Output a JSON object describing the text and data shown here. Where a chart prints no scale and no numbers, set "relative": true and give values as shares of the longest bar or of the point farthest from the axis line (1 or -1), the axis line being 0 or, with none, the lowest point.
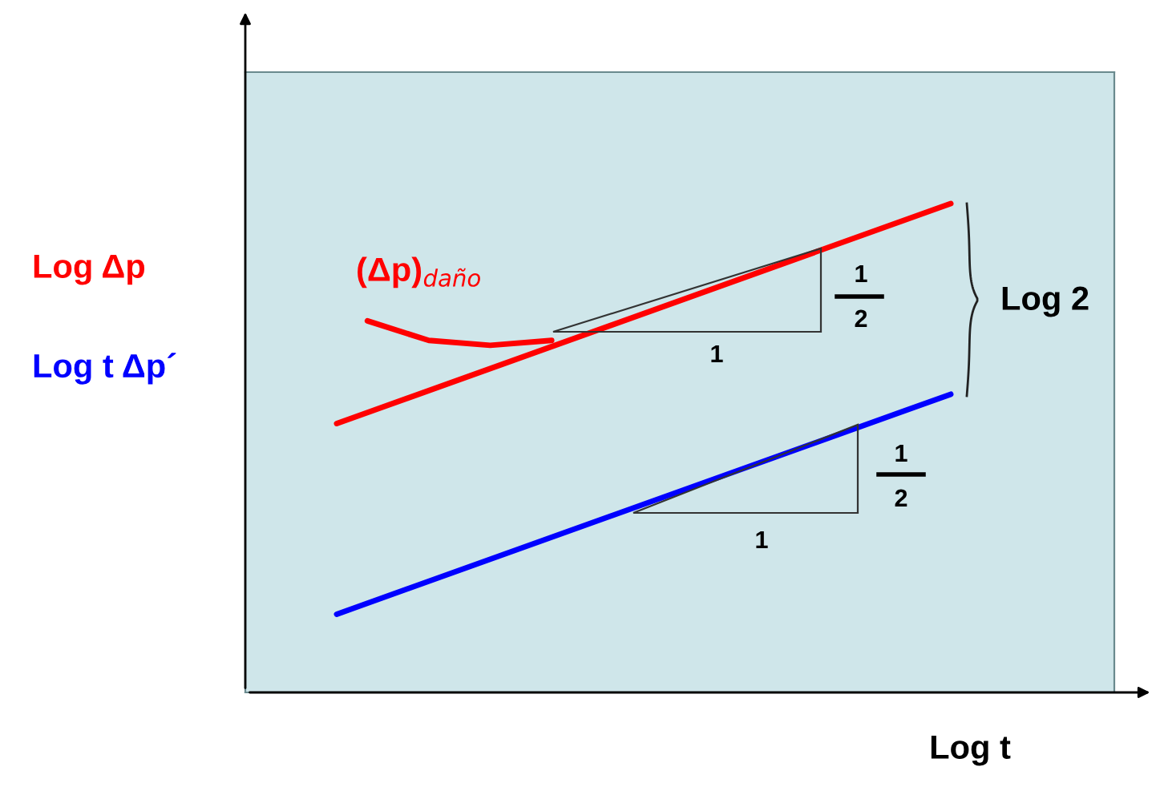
{
  "chart_data": {
    "type": "line",
    "relative": true,
    "xlabel": "Log t",
    "grid": false,
    "marker": "none",
    "line_style": "solid",
    "categories": [
      null,
      null,
      null,
      null,
      null,
      null,
      null,
      null,
      null,
      null,
      null,
      null,
      null,
      null,
      null,
      null,
      null,
      null,
      null,
      null,
      null
    ],
    "series": [
      {
        "color": "#ff0000",
        "values": [
          0.55,
          null,
          null,
          null,
          null,
          null,
          null,
          null,
          null,
          null,
          null,
          null,
          null,
          null,
          null,
          null,
          null,
          null,
          null,
          null,
          1
        ]
      },
      {
        "name": "Log t Δp´",
        "color": "#0000ff",
        "values": [
          0.16,
          null,
          null,
          null,
          null,
          null,
          null,
          null,
          null,
          null,
          null,
          null,
          null,
          null,
          null,
          null,
          null,
          null,
          null,
          null,
          0.61
        ]
      },
      {
        "name": "(Δp)$_{daño}$",
        "color": "#ff0000",
        "values": [
          null,
          0.76,
          null,
          0.72,
          null,
          0.71,
          null,
          0.72,
          null,
          null,
          null,
          null,
          null,
          null,
          null,
          null,
          null,
          null,
          null,
          null,
          null
        ]
      }
    ],
    "annotations": [
      "Log Δp",
      "1",
      "1",
      "2",
      "Log 2",
      "1",
      "1",
      "2"
    ]
  }
}
